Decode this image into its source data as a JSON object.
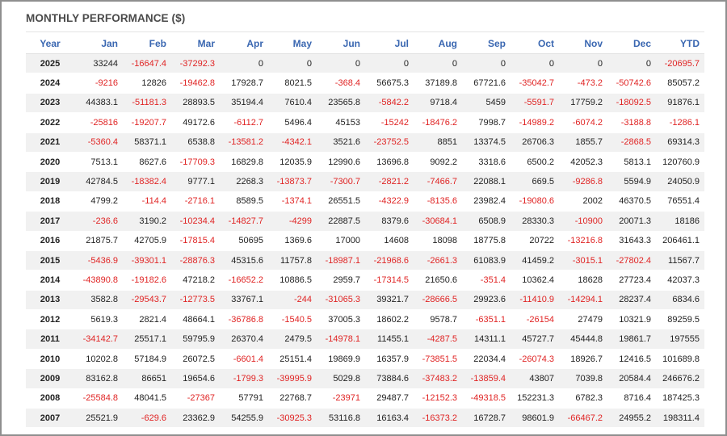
{
  "title": "MONTHLY PERFORMANCE ($)",
  "colors": {
    "header_text": "#3a67b1",
    "negative": "#e02424",
    "positive": "#222222",
    "stripe": "#f1f1f1"
  },
  "columns": [
    "Year",
    "Jan",
    "Feb",
    "Mar",
    "Apr",
    "May",
    "Jun",
    "Jul",
    "Aug",
    "Sep",
    "Oct",
    "Nov",
    "Dec",
    "YTD"
  ],
  "rows": [
    [
      "2025",
      "33244",
      "-16647.4",
      "-37292.3",
      "0",
      "0",
      "0",
      "0",
      "0",
      "0",
      "0",
      "0",
      "0",
      "-20695.7"
    ],
    [
      "2024",
      "-9216",
      "12826",
      "-19462.8",
      "17928.7",
      "8021.5",
      "-368.4",
      "56675.3",
      "37189.8",
      "67721.6",
      "-35042.7",
      "-473.2",
      "-50742.6",
      "85057.2"
    ],
    [
      "2023",
      "44383.1",
      "-51181.3",
      "28893.5",
      "35194.4",
      "7610.4",
      "23565.8",
      "-5842.2",
      "9718.4",
      "5459",
      "-5591.7",
      "17759.2",
      "-18092.5",
      "91876.1"
    ],
    [
      "2022",
      "-25816",
      "-19207.7",
      "49172.6",
      "-6112.7",
      "5496.4",
      "45153",
      "-15242",
      "-18476.2",
      "7998.7",
      "-14989.2",
      "-6074.2",
      "-3188.8",
      "-1286.1"
    ],
    [
      "2021",
      "-5360.4",
      "58371.1",
      "6538.8",
      "-13581.2",
      "-4342.1",
      "3521.6",
      "-23752.5",
      "8851",
      "13374.5",
      "26706.3",
      "1855.7",
      "-2868.5",
      "69314.3"
    ],
    [
      "2020",
      "7513.1",
      "8627.6",
      "-17709.3",
      "16829.8",
      "12035.9",
      "12990.6",
      "13696.8",
      "9092.2",
      "3318.6",
      "6500.2",
      "42052.3",
      "5813.1",
      "120760.9"
    ],
    [
      "2019",
      "42784.5",
      "-18382.4",
      "9777.1",
      "2268.3",
      "-13873.7",
      "-7300.7",
      "-2821.2",
      "-7466.7",
      "22088.1",
      "669.5",
      "-9286.8",
      "5594.9",
      "24050.9"
    ],
    [
      "2018",
      "4799.2",
      "-114.4",
      "-2716.1",
      "8589.5",
      "-1374.1",
      "26551.5",
      "-4322.9",
      "-8135.6",
      "23982.4",
      "-19080.6",
      "2002",
      "46370.5",
      "76551.4"
    ],
    [
      "2017",
      "-236.6",
      "3190.2",
      "-10234.4",
      "-14827.7",
      "-4299",
      "22887.5",
      "8379.6",
      "-30684.1",
      "6508.9",
      "28330.3",
      "-10900",
      "20071.3",
      "18186"
    ],
    [
      "2016",
      "21875.7",
      "42705.9",
      "-17815.4",
      "50695",
      "1369.6",
      "17000",
      "14608",
      "18098",
      "18775.8",
      "20722",
      "-13216.8",
      "31643.3",
      "206461.1"
    ],
    [
      "2015",
      "-5436.9",
      "-39301.1",
      "-28876.3",
      "45315.6",
      "11757.8",
      "-18987.1",
      "-21968.6",
      "-2661.3",
      "61083.9",
      "41459.2",
      "-3015.1",
      "-27802.4",
      "11567.7"
    ],
    [
      "2014",
      "-43890.8",
      "-19182.6",
      "47218.2",
      "-16652.2",
      "10886.5",
      "2959.7",
      "-17314.5",
      "21650.6",
      "-351.4",
      "10362.4",
      "18628",
      "27723.4",
      "42037.3"
    ],
    [
      "2013",
      "3582.8",
      "-29543.7",
      "-12773.5",
      "33767.1",
      "-244",
      "-31065.3",
      "39321.7",
      "-28666.5",
      "29923.6",
      "-11410.9",
      "-14294.1",
      "28237.4",
      "6834.6"
    ],
    [
      "2012",
      "5619.3",
      "2821.4",
      "48664.1",
      "-36786.8",
      "-1540.5",
      "37005.3",
      "18602.2",
      "9578.7",
      "-6351.1",
      "-26154",
      "27479",
      "10321.9",
      "89259.5"
    ],
    [
      "2011",
      "-34142.7",
      "25517.1",
      "59795.9",
      "26370.4",
      "2479.5",
      "-14978.1",
      "11455.1",
      "-4287.5",
      "14311.1",
      "45727.7",
      "45444.8",
      "19861.7",
      "197555"
    ],
    [
      "2010",
      "10202.8",
      "57184.9",
      "26072.5",
      "-6601.4",
      "25151.4",
      "19869.9",
      "16357.9",
      "-73851.5",
      "22034.4",
      "-26074.3",
      "18926.7",
      "12416.5",
      "101689.8"
    ],
    [
      "2009",
      "83162.8",
      "86651",
      "19654.6",
      "-1799.3",
      "-39995.9",
      "5029.8",
      "73884.6",
      "-37483.2",
      "-13859.4",
      "43807",
      "7039.8",
      "20584.4",
      "246676.2"
    ],
    [
      "2008",
      "-25584.8",
      "48041.5",
      "-27367",
      "57791",
      "22768.7",
      "-23971",
      "29487.7",
      "-12152.3",
      "-49318.5",
      "152231.3",
      "6782.3",
      "8716.4",
      "187425.3"
    ],
    [
      "2007",
      "25521.9",
      "-629.6",
      "23362.9",
      "54255.9",
      "-30925.3",
      "53116.8",
      "16163.4",
      "-16373.2",
      "16728.7",
      "98601.9",
      "-66467.2",
      "24955.2",
      "198311.4"
    ]
  ]
}
